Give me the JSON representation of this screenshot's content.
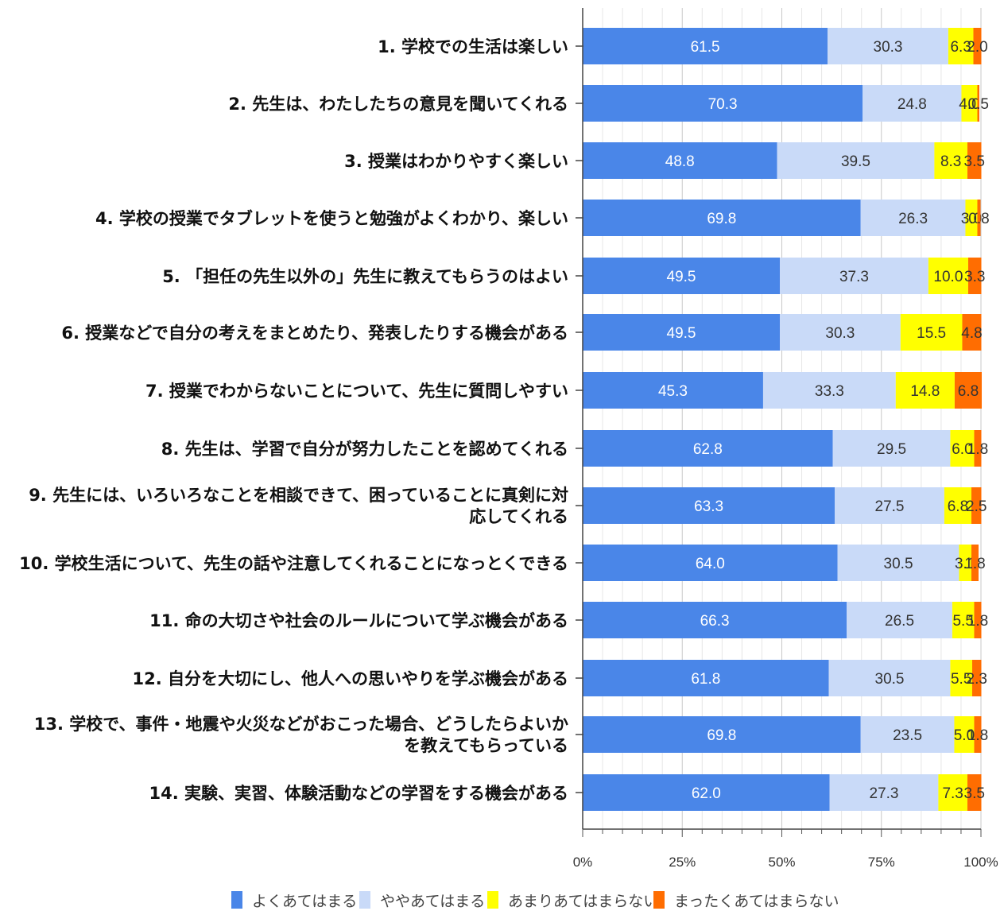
{
  "chart_data": {
    "type": "bar",
    "orientation": "horizontal",
    "stacked": "percent",
    "categories": [
      "1.  学校での生活は楽しい",
      "2.  先生は、わたしたちの意見を聞いてくれる",
      "3.  授業はわかりやすく楽しい",
      "4.  学校の授業でタブレットを使うと勉強がよくわかり、楽しい",
      "5.  「担任の先生以外の」先生に教えてもらうのはよい",
      "6.  授業などで自分の考えをまとめたり、発表したりする機会がある",
      "7.  授業でわからないことについて、先生に質問しやすい",
      "8.  先生は、学習で自分が努力したことを認めてくれる",
      "9.  先生には、いろいろなことを相談できて、困っていることに真剣に対応してくれる",
      "10.  学校生活について、先生の話や注意してくれることになっとくできる",
      "11.  命の大切さや社会のルールについて学ぶ機会がある",
      "12.  自分を大切にし、他人への思いやりを学ぶ機会がある",
      "13.  学校で、事件・地震や火災などがおこった場合、どうしたらよいかを教えてもらっている",
      "14.  実験、実習、体験活動などの学習をする機会がある"
    ],
    "series": [
      {
        "name": "よくあてはまる",
        "color": "#4A86E8",
        "label_color": "#ffffff",
        "values": [
          61.5,
          70.3,
          48.8,
          69.8,
          49.5,
          49.5,
          45.3,
          62.8,
          63.3,
          64.0,
          66.3,
          61.8,
          69.8,
          62.0
        ],
        "labels": [
          "61.5",
          "70.3",
          "48.8",
          "69.8",
          "49.5",
          "49.5",
          "45.3",
          "62.8",
          "63.3",
          "64.0",
          "66.3",
          "61.8",
          "69.8",
          "62.0"
        ]
      },
      {
        "name": "ややあてはまる",
        "color": "#C9DAF8",
        "label_color": "#333333",
        "values": [
          30.3,
          24.8,
          39.5,
          26.3,
          37.3,
          30.3,
          33.3,
          29.5,
          27.5,
          30.5,
          26.5,
          30.5,
          23.5,
          27.3
        ],
        "labels": [
          "30.3",
          "24.8",
          "39.5",
          "26.3",
          "37.3",
          "30.3",
          "33.3",
          "29.5",
          "27.5",
          "30.5",
          "26.5",
          "30.5",
          "23.5",
          "27.3"
        ]
      },
      {
        "name": "あまりあてはまらない",
        "color": "#FFFF00",
        "label_color": "#333333",
        "values": [
          6.3,
          4.0,
          8.3,
          3.0,
          10.0,
          15.5,
          14.8,
          6.0,
          6.8,
          3.1,
          5.5,
          5.5,
          5.0,
          7.3
        ],
        "labels": [
          "6.3",
          "4.0",
          "8.3",
          "3.0",
          "10.0",
          "15.5",
          "14.8",
          "6.0",
          "6.8",
          "3.1",
          "5.5",
          "5.5",
          "5.0",
          "7.3"
        ]
      },
      {
        "name": "まったくあてはまらない",
        "color": "#FF6D01",
        "label_color": "#333333",
        "values": [
          2.0,
          0.5,
          3.5,
          0.8,
          3.3,
          4.8,
          6.8,
          1.8,
          2.5,
          1.8,
          1.8,
          2.3,
          1.8,
          3.5
        ],
        "labels": [
          "2.0",
          "0.5",
          "3.5",
          "0.8",
          "3.3",
          "4.8",
          "6.8",
          "1.8",
          "2.5",
          "1.8",
          "1.8",
          "2.3",
          "1.8",
          "3.5"
        ]
      }
    ],
    "xlim": [
      0,
      100
    ],
    "xticks": [
      "0%",
      "25%",
      "50%",
      "75%",
      "100%"
    ],
    "grid": "vertical",
    "legend_position": "bottom",
    "title": "",
    "xlabel": "",
    "ylabel": ""
  }
}
